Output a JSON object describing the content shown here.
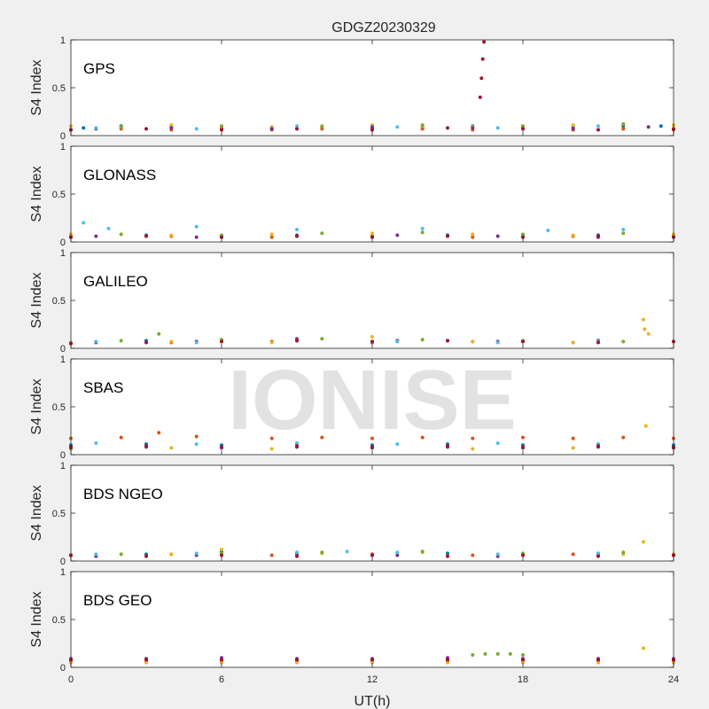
{
  "figure": {
    "title": "GDGZ20230329",
    "xlabel": "UT(h)",
    "watermark": "IONISE"
  },
  "colors": {
    "figure_bg": "#f0f0f0",
    "axes_bg": "#ffffff",
    "axis": "#262626",
    "series": [
      "#0072BD",
      "#D95319",
      "#EDB120",
      "#7E2F8E",
      "#77AC30",
      "#4DBEEE",
      "#A2142F"
    ]
  },
  "chart_data": [
    {
      "type": "scatter",
      "label": "GPS",
      "ylabel": "S4 Index",
      "xlim": [
        0,
        24
      ],
      "ylim": [
        0,
        1
      ],
      "xticks": [
        0,
        6,
        12,
        18,
        24
      ],
      "yticks": [
        0,
        0.5,
        1
      ],
      "ytick_labels": [
        "0",
        "0.5",
        "1"
      ],
      "grid": false,
      "series": [
        {
          "color": "#0072BD",
          "x": [
            0.5,
            2,
            4,
            6,
            8,
            10,
            12,
            14,
            16,
            18,
            20,
            22,
            23.5
          ],
          "y": [
            0.08,
            0.1,
            0.09,
            0.07,
            0.08,
            0.1,
            0.08,
            0.09,
            0.1,
            0.08,
            0.09,
            0.1,
            0.1
          ]
        },
        {
          "color": "#D95319",
          "x": [
            0,
            2,
            4,
            6,
            8,
            10,
            12,
            14,
            16,
            18,
            20,
            22,
            24
          ],
          "y": [
            0.06,
            0.07,
            0.06,
            0.08,
            0.06,
            0.07,
            0.06,
            0.07,
            0.06,
            0.07,
            0.06,
            0.07,
            0.06
          ]
        },
        {
          "color": "#EDB120",
          "x": [
            0,
            2,
            4,
            6,
            8,
            10,
            12,
            14,
            16,
            18,
            20,
            22,
            24
          ],
          "y": [
            0.1,
            0.09,
            0.11,
            0.1,
            0.09,
            0.1,
            0.11,
            0.1,
            0.09,
            0.1,
            0.11,
            0.12,
            0.11
          ]
        },
        {
          "color": "#7E2F8E",
          "x": [
            1,
            4,
            8,
            12,
            16,
            20,
            23
          ],
          "y": [
            0.07,
            0.08,
            0.07,
            0.09,
            0.08,
            0.07,
            0.09
          ]
        },
        {
          "color": "#77AC30",
          "x": [
            2,
            6,
            10,
            14,
            18,
            22
          ],
          "y": [
            0.09,
            0.1,
            0.09,
            0.11,
            0.1,
            0.12
          ]
        },
        {
          "color": "#4DBEEE",
          "x": [
            1,
            5,
            9,
            13,
            17,
            21
          ],
          "y": [
            0.08,
            0.07,
            0.1,
            0.09,
            0.08,
            0.1
          ]
        },
        {
          "color": "#A2142F",
          "x": [
            0,
            3,
            6,
            9,
            12,
            15,
            16.3,
            16.35,
            16.4,
            16.45,
            18,
            21,
            24
          ],
          "y": [
            0.06,
            0.07,
            0.06,
            0.07,
            0.06,
            0.08,
            0.4,
            0.6,
            0.8,
            0.98,
            0.07,
            0.06,
            0.07
          ]
        }
      ]
    },
    {
      "type": "scatter",
      "label": "GLONASS",
      "ylabel": "S4 Index",
      "xlim": [
        0,
        24
      ],
      "ylim": [
        0,
        1
      ],
      "xticks": [
        0,
        6,
        12,
        18,
        24
      ],
      "yticks": [
        0,
        0.5,
        1
      ],
      "ytick_labels": [
        "0",
        "0.5",
        "1"
      ],
      "grid": false,
      "series": [
        {
          "color": "#0072BD",
          "x": [
            0,
            3,
            6,
            9,
            12,
            15,
            18,
            21,
            24
          ],
          "y": [
            0.06,
            0.07,
            0.06,
            0.07,
            0.06,
            0.07,
            0.06,
            0.07,
            0.06
          ]
        },
        {
          "color": "#D95319",
          "x": [
            0,
            4,
            8,
            12,
            16,
            20,
            24
          ],
          "y": [
            0.05,
            0.06,
            0.05,
            0.06,
            0.05,
            0.06,
            0.05
          ]
        },
        {
          "color": "#EDB120",
          "x": [
            0,
            4,
            8,
            12,
            16,
            20,
            24
          ],
          "y": [
            0.08,
            0.07,
            0.08,
            0.09,
            0.08,
            0.07,
            0.08
          ]
        },
        {
          "color": "#7E2F8E",
          "x": [
            1,
            5,
            9,
            13,
            17,
            21
          ],
          "y": [
            0.06,
            0.05,
            0.06,
            0.07,
            0.06,
            0.05
          ]
        },
        {
          "color": "#77AC30",
          "x": [
            2,
            6,
            10,
            14,
            18,
            22
          ],
          "y": [
            0.08,
            0.07,
            0.09,
            0.1,
            0.08,
            0.09
          ]
        },
        {
          "color": "#4DBEEE",
          "x": [
            0.5,
            1.5,
            5,
            9,
            14,
            19,
            22
          ],
          "y": [
            0.2,
            0.14,
            0.16,
            0.13,
            0.14,
            0.12,
            0.13
          ]
        },
        {
          "color": "#A2142F",
          "x": [
            0,
            3,
            6,
            9,
            12,
            15,
            18,
            21,
            24
          ],
          "y": [
            0.05,
            0.06,
            0.05,
            0.06,
            0.05,
            0.06,
            0.05,
            0.06,
            0.05
          ]
        }
      ]
    },
    {
      "type": "scatter",
      "label": "GALILEO",
      "ylabel": "S4 Index",
      "xlim": [
        0,
        24
      ],
      "ylim": [
        0,
        1
      ],
      "xticks": [
        0,
        6,
        12,
        18,
        24
      ],
      "yticks": [
        0,
        0.5,
        1
      ],
      "ytick_labels": [
        "0",
        "0.5",
        "1"
      ],
      "grid": false,
      "series": [
        {
          "color": "#0072BD",
          "x": [
            0,
            3,
            6,
            9,
            12,
            15,
            18,
            21,
            24
          ],
          "y": [
            0.06,
            0.08,
            0.07,
            0.08,
            0.07,
            0.08,
            0.07,
            0.08,
            0.07
          ]
        },
        {
          "color": "#D95319",
          "x": [
            0,
            4,
            8,
            12,
            16,
            20,
            24
          ],
          "y": [
            0.05,
            0.06,
            0.07,
            0.06,
            0.07,
            0.06,
            0.07
          ]
        },
        {
          "color": "#EDB120",
          "x": [
            0,
            4,
            8,
            12,
            16,
            20,
            22.8,
            22.85,
            23,
            24
          ],
          "y": [
            0.06,
            0.07,
            0.06,
            0.12,
            0.07,
            0.06,
            0.3,
            0.2,
            0.15,
            0.07
          ]
        },
        {
          "color": "#7E2F8E",
          "x": [
            1,
            5,
            9,
            13,
            17,
            21
          ],
          "y": [
            0.06,
            0.07,
            0.1,
            0.08,
            0.07,
            0.08
          ]
        },
        {
          "color": "#77AC30",
          "x": [
            2,
            3.5,
            6,
            10,
            14,
            18,
            22
          ],
          "y": [
            0.08,
            0.15,
            0.09,
            0.1,
            0.09,
            0.08,
            0.07
          ]
        },
        {
          "color": "#4DBEEE",
          "x": [
            1,
            5,
            9,
            13,
            17,
            21
          ],
          "y": [
            0.07,
            0.06,
            0.08,
            0.07,
            0.06,
            0.07
          ]
        },
        {
          "color": "#A2142F",
          "x": [
            0,
            3,
            6,
            9,
            12,
            15,
            18,
            21,
            24
          ],
          "y": [
            0.05,
            0.06,
            0.07,
            0.08,
            0.07,
            0.08,
            0.07,
            0.06,
            0.07
          ]
        }
      ]
    },
    {
      "type": "scatter",
      "label": "SBAS",
      "ylabel": "S4 Index",
      "xlim": [
        0,
        24
      ],
      "ylim": [
        0,
        1
      ],
      "xticks": [
        0,
        6,
        12,
        18,
        24
      ],
      "yticks": [
        0,
        0.5,
        1
      ],
      "ytick_labels": [
        "0",
        "0.5",
        "1"
      ],
      "grid": false,
      "series": [
        {
          "color": "#0072BD",
          "x": [
            0,
            3,
            6,
            9,
            12,
            15,
            18,
            21,
            24
          ],
          "y": [
            0.1,
            0.11,
            0.1,
            0.11,
            0.1,
            0.11,
            0.1,
            0.11,
            0.1
          ]
        },
        {
          "color": "#D95319",
          "x": [
            0,
            2,
            3.5,
            5,
            8,
            10,
            12,
            14,
            16,
            18,
            20,
            22,
            24
          ],
          "y": [
            0.17,
            0.18,
            0.23,
            0.19,
            0.17,
            0.18,
            0.17,
            0.18,
            0.17,
            0.18,
            0.17,
            0.18,
            0.17
          ]
        },
        {
          "color": "#EDB120",
          "x": [
            0,
            4,
            8,
            12,
            16,
            20,
            22.9,
            24
          ],
          "y": [
            0.06,
            0.07,
            0.06,
            0.07,
            0.06,
            0.07,
            0.3,
            0.07
          ]
        },
        {
          "color": "#7E2F8E",
          "x": [
            0,
            3,
            6,
            9,
            12,
            15,
            18,
            21,
            24
          ],
          "y": [
            0.07,
            0.08,
            0.07,
            0.08,
            0.07,
            0.08,
            0.07,
            0.08,
            0.07
          ]
        },
        {
          "color": "#4DBEEE",
          "x": [
            1,
            5,
            9,
            13,
            17,
            21
          ],
          "y": [
            0.12,
            0.11,
            0.12,
            0.11,
            0.12,
            0.11
          ]
        },
        {
          "color": "#A2142F",
          "x": [
            0,
            3,
            6,
            9,
            12,
            15,
            18,
            21,
            24
          ],
          "y": [
            0.08,
            0.09,
            0.08,
            0.09,
            0.08,
            0.09,
            0.08,
            0.09,
            0.08
          ]
        }
      ]
    },
    {
      "type": "scatter",
      "label": "BDS NGEO",
      "ylabel": "S4 Index",
      "xlim": [
        0,
        24
      ],
      "ylim": [
        0,
        1
      ],
      "xticks": [
        0,
        6,
        12,
        18,
        24
      ],
      "yticks": [
        0,
        0.5,
        1
      ],
      "ytick_labels": [
        "0",
        "0.5",
        "1"
      ],
      "grid": false,
      "series": [
        {
          "color": "#0072BD",
          "x": [
            0,
            3,
            6,
            9,
            12,
            15,
            18,
            21,
            24
          ],
          "y": [
            0.06,
            0.07,
            0.1,
            0.08,
            0.07,
            0.08,
            0.07,
            0.08,
            0.07
          ]
        },
        {
          "color": "#D95319",
          "x": [
            0,
            4,
            8,
            12,
            16,
            20,
            24
          ],
          "y": [
            0.06,
            0.07,
            0.06,
            0.07,
            0.06,
            0.07,
            0.06
          ]
        },
        {
          "color": "#EDB120",
          "x": [
            0,
            4,
            6,
            10,
            14,
            18,
            22,
            22.8,
            24
          ],
          "y": [
            0.06,
            0.07,
            0.12,
            0.08,
            0.09,
            0.08,
            0.07,
            0.2,
            0.07
          ]
        },
        {
          "color": "#7E2F8E",
          "x": [
            1,
            5,
            9,
            13,
            17,
            21
          ],
          "y": [
            0.05,
            0.06,
            0.07,
            0.06,
            0.05,
            0.06
          ]
        },
        {
          "color": "#77AC30",
          "x": [
            2,
            6,
            10,
            14,
            18,
            22
          ],
          "y": [
            0.07,
            0.08,
            0.09,
            0.1,
            0.08,
            0.09
          ]
        },
        {
          "color": "#4DBEEE",
          "x": [
            1,
            5,
            9,
            11,
            13,
            17,
            21
          ],
          "y": [
            0.07,
            0.08,
            0.09,
            0.1,
            0.09,
            0.07,
            0.08
          ]
        },
        {
          "color": "#A2142F",
          "x": [
            0,
            3,
            6,
            9,
            12,
            15,
            18,
            21,
            24
          ],
          "y": [
            0.06,
            0.05,
            0.06,
            0.05,
            0.06,
            0.05,
            0.06,
            0.05,
            0.06
          ]
        }
      ]
    },
    {
      "type": "scatter",
      "label": "BDS GEO",
      "ylabel": "S4 Index",
      "xlim": [
        0,
        24
      ],
      "ylim": [
        0,
        1
      ],
      "xticks": [
        0,
        6,
        12,
        18,
        24
      ],
      "yticks": [
        0,
        0.5,
        1
      ],
      "ytick_labels": [
        "0",
        "0.5",
        "1"
      ],
      "grid": false,
      "series": [
        {
          "color": "#0072BD",
          "x": [
            0,
            3,
            6,
            9,
            12,
            15,
            18,
            21,
            24
          ],
          "y": [
            0.07,
            0.07,
            0.07,
            0.07,
            0.07,
            0.07,
            0.07,
            0.07,
            0.07
          ]
        },
        {
          "color": "#D95319",
          "x": [
            0,
            3,
            6,
            9,
            12,
            15,
            18,
            21,
            24
          ],
          "y": [
            0.06,
            0.06,
            0.06,
            0.06,
            0.06,
            0.06,
            0.06,
            0.06,
            0.06
          ]
        },
        {
          "color": "#EDB120",
          "x": [
            0,
            3,
            6,
            9,
            12,
            15,
            18,
            21,
            22.8,
            24
          ],
          "y": [
            0.05,
            0.05,
            0.05,
            0.05,
            0.05,
            0.05,
            0.05,
            0.05,
            0.2,
            0.05
          ]
        },
        {
          "color": "#7E2F8E",
          "x": [
            0,
            3,
            6,
            9,
            12,
            15,
            18,
            21,
            24
          ],
          "y": [
            0.09,
            0.09,
            0.1,
            0.09,
            0.09,
            0.1,
            0.09,
            0.09,
            0.09
          ]
        },
        {
          "color": "#77AC30",
          "x": [
            16,
            16.5,
            17,
            17.5,
            18
          ],
          "y": [
            0.13,
            0.14,
            0.14,
            0.14,
            0.13
          ]
        },
        {
          "color": "#A2142F",
          "x": [
            0,
            3,
            6,
            9,
            12,
            15,
            18,
            21,
            24
          ],
          "y": [
            0.08,
            0.08,
            0.08,
            0.08,
            0.08,
            0.08,
            0.08,
            0.08,
            0.08
          ]
        }
      ]
    }
  ]
}
